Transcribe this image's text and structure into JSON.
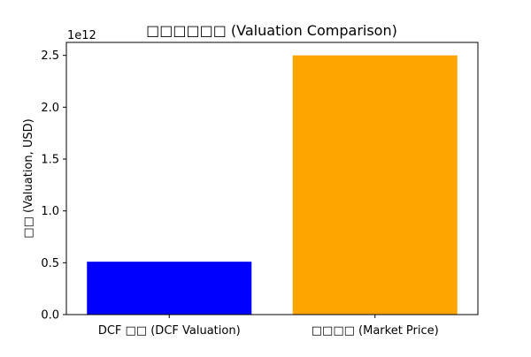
{
  "chart_data": {
    "type": "bar",
    "title": "□□□□□□ (Valuation Comparison)",
    "xlabel": "",
    "ylabel": "□□ (Valuation, USD)",
    "offset_label": "1e12",
    "categories": [
      "DCF □□ (DCF Valuation)",
      "□□□□ (Market Price)"
    ],
    "values": [
      510000000000,
      2500000000000
    ],
    "colors": [
      "#0000ff",
      "#ffa500"
    ],
    "ylim": [
      0,
      2625000000000
    ],
    "yticks": [
      0,
      500000000000,
      1000000000000,
      1500000000000,
      2000000000000,
      2500000000000
    ],
    "ytick_labels": [
      "0.0",
      "0.5",
      "1.0",
      "1.5",
      "2.0",
      "2.5"
    ],
    "grid": false,
    "legend": "none"
  }
}
